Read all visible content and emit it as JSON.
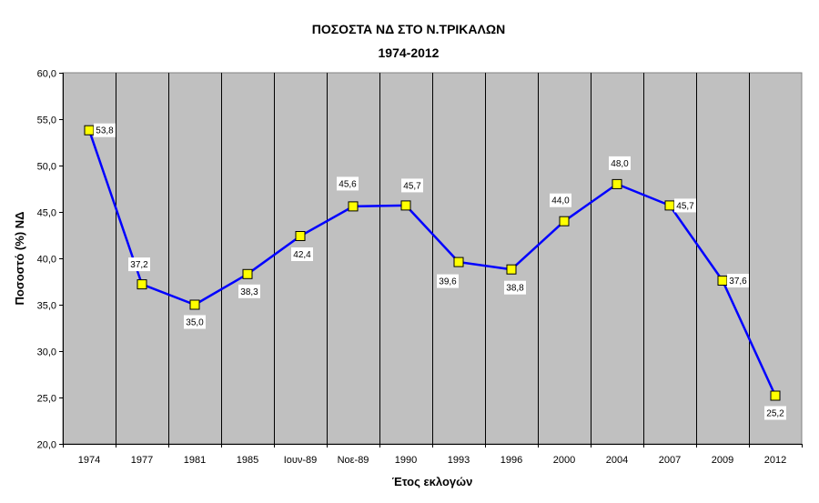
{
  "chart_data": {
    "type": "line",
    "title": "ΠΟΣΟΣΤΑ ΝΔ ΣΤΟ Ν.ΤΡΙΚΑΛΩΝ",
    "subtitle": "1974-2012",
    "xlabel": "Έτος εκλογών",
    "ylabel": "Ποσοστό (%) ΝΔ",
    "categories": [
      "1974",
      "1977",
      "1981",
      "1985",
      "Ιουν-89",
      "Νοε-89",
      "1990",
      "1993",
      "1996",
      "2000",
      "2004",
      "2007",
      "2009",
      "2012"
    ],
    "series": [
      {
        "values": [
          53.8,
          37.2,
          35.0,
          38.3,
          42.4,
          45.6,
          45.7,
          39.6,
          38.8,
          44.0,
          48.0,
          45.7,
          37.6,
          25.2
        ],
        "labels": [
          "53,8",
          "37,2",
          "35,0",
          "38,3",
          "42,4",
          "45,6",
          "45,7",
          "39,6",
          "38,8",
          "44,0",
          "48,0",
          "45,7",
          "37,6",
          "25,2"
        ]
      }
    ],
    "ylim": [
      20,
      60
    ],
    "yticks": [
      "20,0",
      "25,0",
      "30,0",
      "35,0",
      "40,0",
      "45,0",
      "50,0",
      "55,0",
      "60,0"
    ],
    "grid": "vertical",
    "legend": "none",
    "colors": {
      "plot_background": "#c0c0c0",
      "line": "#0000ff",
      "marker_fill": "#ffff00",
      "marker_stroke": "#000000",
      "gridline": "#000000"
    }
  }
}
